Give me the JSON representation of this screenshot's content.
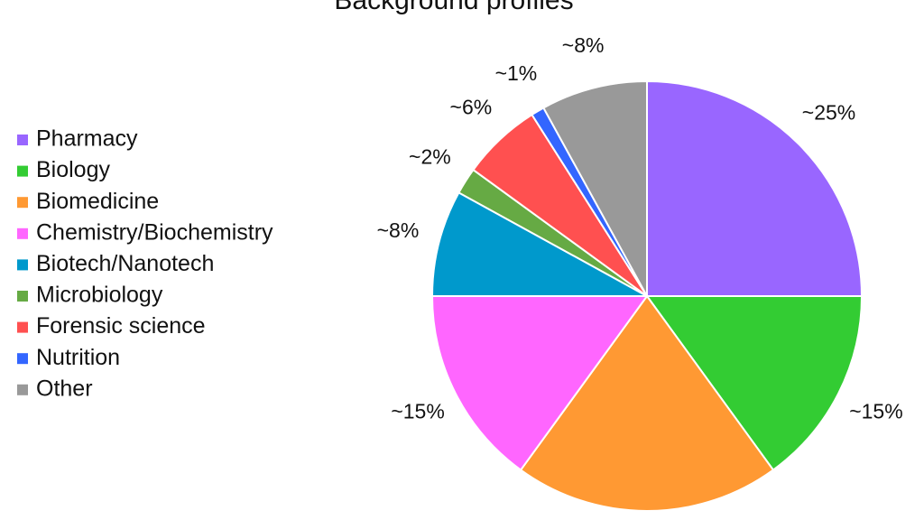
{
  "chart_data": {
    "type": "pie",
    "title": "Background profiles",
    "categories": [
      "Pharmacy",
      "Biology",
      "Biomedicine",
      "Chemistry/Biochemistry",
      "Biotech/Nanotech",
      "Microbiology",
      "Forensic science",
      "Nutrition",
      "Other"
    ],
    "values": [
      25,
      15,
      20,
      15,
      8,
      2,
      6,
      1,
      8
    ],
    "value_labels": [
      "~25%",
      "~15%",
      null,
      "~15%",
      "~8%",
      "~2%",
      "~6%",
      "~1%",
      "~8%"
    ],
    "colors": [
      "#9966ff",
      "#33cc33",
      "#ff9933",
      "#ff66ff",
      "#0099cc",
      "#66aa44",
      "#ff5050",
      "#3366ff",
      "#999999"
    ],
    "legend": "left"
  }
}
